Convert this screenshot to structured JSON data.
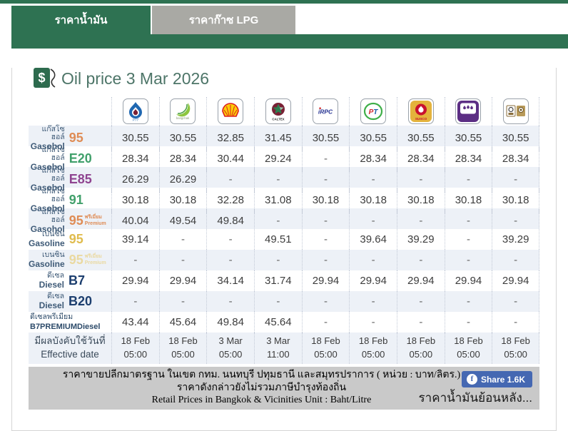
{
  "colors": {
    "brand_green": "#2e7252",
    "tab_inactive_gray": "#a9a9a4",
    "row_stripe": "#edf1f7",
    "facebook_blue": "#4568b2",
    "title_text": "#4d7568",
    "label_text": "#3e5a77"
  },
  "tabs": [
    {
      "label": "ราคาน้ำมัน",
      "active": true
    },
    {
      "label": "ราคาก๊าซ LPG",
      "active": false
    }
  ],
  "title": "Oil price 3 Mar 2026",
  "icons": {
    "pump": "$",
    "facebook": "f"
  },
  "brands": [
    {
      "id": "ptt",
      "label": "PTT"
    },
    {
      "id": "bangchak",
      "label": "bangchak"
    },
    {
      "id": "shell",
      "label": ""
    },
    {
      "id": "caltex",
      "label": "CALTEX"
    },
    {
      "id": "irpc",
      "label": "iRPC"
    },
    {
      "id": "pt",
      "label": "PT"
    },
    {
      "id": "susco",
      "label": "SUSCO"
    },
    {
      "id": "pure",
      "label": "PURE"
    },
    {
      "id": "susco-dealers",
      "label": ""
    }
  ],
  "table": {
    "rows": [
      {
        "thai": "แก๊สโซฮอล์",
        "eng": "Gasohol",
        "grade": "95",
        "color": "#df8c55",
        "values": [
          "30.55",
          "30.55",
          "32.85",
          "31.45",
          "30.55",
          "30.55",
          "30.55",
          "30.55",
          "30.55"
        ]
      },
      {
        "thai": "แก๊สโซฮอล์",
        "eng": "Gasohol",
        "grade": "E20",
        "color": "#41a06b",
        "values": [
          "28.34",
          "28.34",
          "30.44",
          "29.24",
          "-",
          "28.34",
          "28.34",
          "28.34",
          "28.34"
        ]
      },
      {
        "thai": "แก๊สโซฮอล์",
        "eng": "Gasohol",
        "grade": "E85",
        "color": "#8f4490",
        "values": [
          "26.29",
          "26.29",
          "-",
          "-",
          "-",
          "-",
          "-",
          "-",
          "-"
        ]
      },
      {
        "thai": "แก๊สโซฮอล์",
        "eng": "Gasohol",
        "grade": "91",
        "color": "#41a06b",
        "values": [
          "30.18",
          "30.18",
          "32.28",
          "31.08",
          "30.18",
          "30.18",
          "30.18",
          "30.18",
          "30.18"
        ]
      },
      {
        "thai": "แก๊สโซฮอล์",
        "eng": "Gasohol",
        "grade": "95",
        "color": "#df8c55",
        "sub_thai": "พรีเมี่ยม",
        "sub_eng": "Premium",
        "values": [
          "40.04",
          "49.54",
          "49.84",
          "-",
          "-",
          "-",
          "-",
          "-",
          "-"
        ]
      },
      {
        "thai": "เบนซิน",
        "eng": "Gasoline",
        "grade": "95",
        "color": "#e0bc4e",
        "values": [
          "39.14",
          "-",
          "-",
          "49.51",
          "-",
          "39.64",
          "39.29",
          "-",
          "39.29"
        ]
      },
      {
        "thai": "เบนซิน",
        "eng": "Gasoline",
        "grade": "95",
        "color": "#ead9a0",
        "sub_thai": "พรีเมี่ยม",
        "sub_eng": "Premium",
        "values": [
          "-",
          "-",
          "-",
          "-",
          "-",
          "-",
          "-",
          "-",
          "-"
        ]
      },
      {
        "thai": "ดีเซล",
        "eng": "Diesel",
        "grade": "B7",
        "color": "#1c3e6e",
        "values": [
          "29.94",
          "29.94",
          "34.14",
          "31.74",
          "29.94",
          "29.94",
          "29.94",
          "29.94",
          "29.94"
        ]
      },
      {
        "thai": "ดีเซล",
        "eng": "Diesel",
        "grade": "B20",
        "color": "#1c3e6e",
        "values": [
          "-",
          "-",
          "-",
          "-",
          "-",
          "-",
          "-",
          "-",
          "-"
        ]
      },
      {
        "thai": "ดีเซลพรีเมียม",
        "eng": "B7PREMIUMDiesel",
        "stacked": true,
        "values": [
          "43.44",
          "45.64",
          "49.84",
          "45.64",
          "-",
          "-",
          "-",
          "-",
          "-"
        ]
      }
    ],
    "effective": {
      "thai": "มีผลบังคับใช้วันที่",
      "eng": "Effective date",
      "values": [
        {
          "date": "18 Feb",
          "time": "05:00"
        },
        {
          "date": "18 Feb",
          "time": "05:00"
        },
        {
          "date": "3 Mar",
          "time": "05:00"
        },
        {
          "date": "3 Mar",
          "time": "11:00"
        },
        {
          "date": "18 Feb",
          "time": "05:00"
        },
        {
          "date": "18 Feb",
          "time": "05:00"
        },
        {
          "date": "18 Feb",
          "time": "05:00"
        },
        {
          "date": "18 Feb",
          "time": "05:00"
        },
        {
          "date": "18 Feb",
          "time": "05:00"
        }
      ]
    }
  },
  "footer": {
    "line1": "ราคาขายปลีกมาตรฐาน ในเขต กทม. นนทบุรี ปทุมธานี และสมุทรปราการ ( หน่วย : บาท/ลิตร.)",
    "line2": "ราคาดังกล่าวยังไม่รวมภาษีบำรุงท้องถิ่น",
    "line3": "Retail Prices in Bangkok & Vicinities Unit : Baht/Litre",
    "share_label": "Share 1.6K",
    "history_link": "ราคาน้ำมันย้อนหลัง..."
  }
}
